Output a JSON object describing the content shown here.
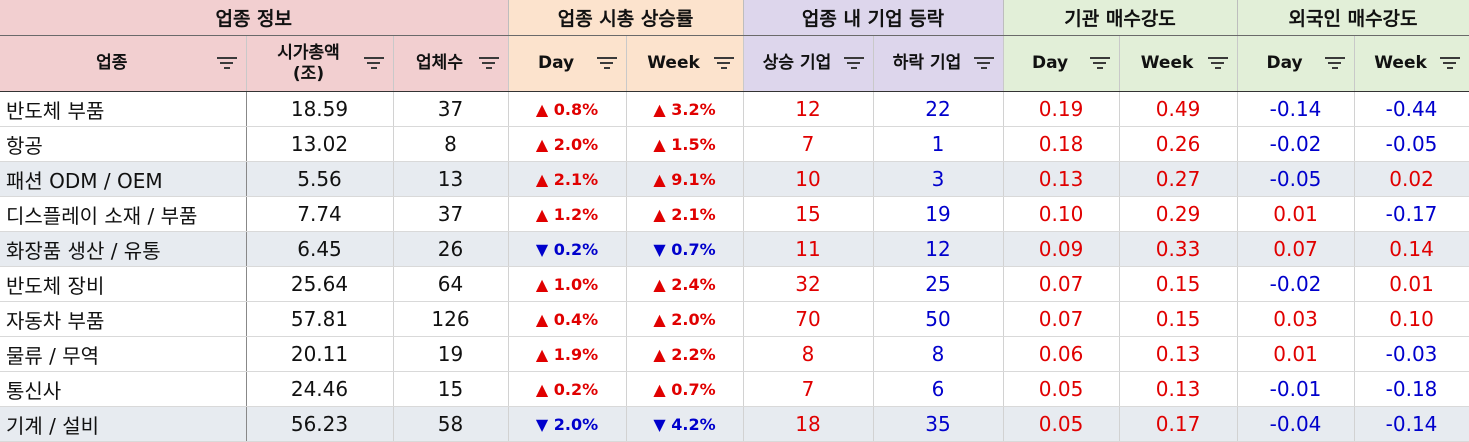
{
  "group_headers": [
    {
      "label": "업종 정보"
    },
    {
      "label": "업종 시총 상승률"
    },
    {
      "label": "업종 내 기업 등락"
    },
    {
      "label": "기관 매수강도"
    },
    {
      "label": "외국인 매수강도"
    }
  ],
  "column_headers": {
    "sector": "업종",
    "mcap": "시가총액\n(조)",
    "count": "업체수",
    "mcap_day": "Day",
    "mcap_week": "Week",
    "up_count": "상승 기업",
    "down_count": "하락 기업",
    "inst_day": "Day",
    "inst_week": "Week",
    "foreign_day": "Day",
    "foreign_week": "Week"
  },
  "colors": {
    "info_header": "#f2cfd0",
    "rise_header": "#fce3cd",
    "updown_header": "#ddd6ec",
    "strength_header": "#e2efd8",
    "positive": "#e00000",
    "negative": "#0000cc"
  },
  "icons": {
    "filter": "filter-icon",
    "up": "▲",
    "down": "▼"
  },
  "rows": [
    {
      "sector": "반도체 부품",
      "mcap": "18.59",
      "count": "37",
      "day_dir": "up",
      "day": "0.8%",
      "week_dir": "up",
      "week": "3.2%",
      "up_count": "12",
      "down_count": "22",
      "inst_day": "0.19",
      "inst_week": "0.49",
      "foreign_day": "-0.14",
      "foreign_week": "-0.44"
    },
    {
      "sector": "항공",
      "mcap": "13.02",
      "count": "8",
      "day_dir": "up",
      "day": "2.0%",
      "week_dir": "up",
      "week": "1.5%",
      "up_count": "7",
      "down_count": "1",
      "inst_day": "0.18",
      "inst_week": "0.26",
      "foreign_day": "-0.02",
      "foreign_week": "-0.05"
    },
    {
      "sector": "패션 ODM / OEM",
      "mcap": "5.56",
      "count": "13",
      "day_dir": "up",
      "day": "2.1%",
      "week_dir": "up",
      "week": "9.1%",
      "up_count": "10",
      "down_count": "3",
      "inst_day": "0.13",
      "inst_week": "0.27",
      "foreign_day": "-0.05",
      "foreign_week": "0.02"
    },
    {
      "sector": "디스플레이 소재 / 부품",
      "mcap": "7.74",
      "count": "37",
      "day_dir": "up",
      "day": "1.2%",
      "week_dir": "up",
      "week": "2.1%",
      "up_count": "15",
      "down_count": "19",
      "inst_day": "0.10",
      "inst_week": "0.29",
      "foreign_day": "0.01",
      "foreign_week": "-0.17"
    },
    {
      "sector": "화장품 생산 / 유통",
      "mcap": "6.45",
      "count": "26",
      "day_dir": "down",
      "day": "0.2%",
      "week_dir": "down",
      "week": "0.7%",
      "up_count": "11",
      "down_count": "12",
      "inst_day": "0.09",
      "inst_week": "0.33",
      "foreign_day": "0.07",
      "foreign_week": "0.14"
    },
    {
      "sector": "반도체 장비",
      "mcap": "25.64",
      "count": "64",
      "day_dir": "up",
      "day": "1.0%",
      "week_dir": "up",
      "week": "2.4%",
      "up_count": "32",
      "down_count": "25",
      "inst_day": "0.07",
      "inst_week": "0.15",
      "foreign_day": "-0.02",
      "foreign_week": "0.01"
    },
    {
      "sector": "자동차 부품",
      "mcap": "57.81",
      "count": "126",
      "day_dir": "up",
      "day": "0.4%",
      "week_dir": "up",
      "week": "2.0%",
      "up_count": "70",
      "down_count": "50",
      "inst_day": "0.07",
      "inst_week": "0.15",
      "foreign_day": "0.03",
      "foreign_week": "0.10"
    },
    {
      "sector": "물류 / 무역",
      "mcap": "20.11",
      "count": "19",
      "day_dir": "up",
      "day": "1.9%",
      "week_dir": "up",
      "week": "2.2%",
      "up_count": "8",
      "down_count": "8",
      "inst_day": "0.06",
      "inst_week": "0.13",
      "foreign_day": "0.01",
      "foreign_week": "-0.03"
    },
    {
      "sector": "통신사",
      "mcap": "24.46",
      "count": "15",
      "day_dir": "up",
      "day": "0.2%",
      "week_dir": "up",
      "week": "0.7%",
      "up_count": "7",
      "down_count": "6",
      "inst_day": "0.05",
      "inst_week": "0.13",
      "foreign_day": "-0.01",
      "foreign_week": "-0.18"
    },
    {
      "sector": "기계 / 설비",
      "mcap": "56.23",
      "count": "58",
      "day_dir": "down",
      "day": "2.0%",
      "week_dir": "down",
      "week": "4.2%",
      "up_count": "18",
      "down_count": "35",
      "inst_day": "0.05",
      "inst_week": "0.17",
      "foreign_day": "-0.04",
      "foreign_week": "-0.14"
    }
  ]
}
